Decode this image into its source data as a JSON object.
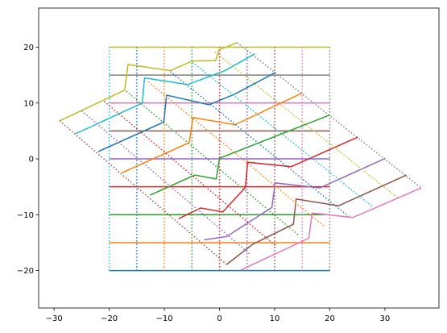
{
  "chart_data": {
    "type": "line",
    "xlim": [
      -32.8,
      39.8
    ],
    "ylim": [
      -26.7,
      27.0
    ],
    "xticks": [
      {
        "value": -30,
        "label": "−30"
      },
      {
        "value": -20,
        "label": "−20"
      },
      {
        "value": -10,
        "label": "−10"
      },
      0,
      10,
      20,
      30
    ],
    "yticks": [
      {
        "value": -20,
        "label": "−20"
      },
      {
        "value": -10,
        "label": "−10"
      },
      0,
      10,
      20
    ],
    "series": [
      {
        "color": "#1f77b4",
        "linestyle": "solid",
        "x": [
          -20,
          20
        ],
        "y": [
          -20,
          -20
        ]
      },
      {
        "color": "#ff7f0e",
        "linestyle": "solid",
        "x": [
          -20,
          20
        ],
        "y": [
          -15,
          -15
        ]
      },
      {
        "color": "#2ca02c",
        "linestyle": "solid",
        "x": [
          -20,
          20
        ],
        "y": [
          -10,
          -10
        ]
      },
      {
        "color": "#d62728",
        "linestyle": "solid",
        "x": [
          -20,
          20
        ],
        "y": [
          -5,
          -5
        ]
      },
      {
        "color": "#9467bd",
        "linestyle": "solid",
        "x": [
          -20,
          20
        ],
        "y": [
          0,
          0
        ]
      },
      {
        "color": "#8c564b",
        "linestyle": "solid",
        "x": [
          -20,
          20
        ],
        "y": [
          5,
          5
        ]
      },
      {
        "color": "#e377c2",
        "linestyle": "solid",
        "x": [
          -20,
          20
        ],
        "y": [
          10,
          10
        ]
      },
      {
        "color": "#7f7f7f",
        "linestyle": "solid",
        "x": [
          -20,
          20
        ],
        "y": [
          15,
          15
        ]
      },
      {
        "color": "#bcbd22",
        "linestyle": "solid",
        "x": [
          -20,
          20
        ],
        "y": [
          20,
          20
        ]
      },
      {
        "color": "#17becf",
        "linestyle": "dotted",
        "x": [
          -20,
          -20
        ],
        "y": [
          -20,
          20
        ]
      },
      {
        "color": "#1f77b4",
        "linestyle": "dotted",
        "x": [
          -15,
          -15
        ],
        "y": [
          -20,
          20
        ]
      },
      {
        "color": "#ff7f0e",
        "linestyle": "dotted",
        "x": [
          -10,
          -10
        ],
        "y": [
          -20,
          20
        ]
      },
      {
        "color": "#2ca02c",
        "linestyle": "dotted",
        "x": [
          -5,
          -5
        ],
        "y": [
          -20,
          20
        ]
      },
      {
        "color": "#d62728",
        "linestyle": "dotted",
        "x": [
          0,
          0
        ],
        "y": [
          -20,
          20
        ]
      },
      {
        "color": "#9467bd",
        "linestyle": "dotted",
        "x": [
          5,
          5
        ],
        "y": [
          -20,
          20
        ]
      },
      {
        "color": "#8c564b",
        "linestyle": "dotted",
        "x": [
          10,
          10
        ],
        "y": [
          -20,
          20
        ]
      },
      {
        "color": "#e377c2",
        "linestyle": "dotted",
        "x": [
          15,
          15
        ],
        "y": [
          -20,
          20
        ]
      },
      {
        "color": "#7f7f7f",
        "linestyle": "dotted",
        "x": [
          20,
          20
        ],
        "y": [
          -20,
          20
        ]
      },
      {
        "color": "#bcbd22",
        "linestyle": "solid",
        "x": [
          -29,
          -17.2,
          -16.6,
          -8.9,
          -5,
          -0.7,
          -0.1,
          3.2
        ],
        "y": [
          6.8,
          12.3,
          16.9,
          15.8,
          17.5,
          17.6,
          19.5,
          20.8
        ]
      },
      {
        "color": "#17becf",
        "linestyle": "solid",
        "x": [
          -26.1,
          -14,
          -13.6,
          -5.8,
          1,
          6.4
        ],
        "y": [
          4.5,
          10,
          14.5,
          13.3,
          15.8,
          18.8
        ]
      },
      {
        "color": "#1f77b4",
        "linestyle": "solid",
        "x": [
          -22,
          -10.1,
          -9.6,
          -1.9,
          2.8,
          10.2
        ],
        "y": [
          1.3,
          6.6,
          11.4,
          9.7,
          11.6,
          15.5
        ]
      },
      {
        "color": "#ff7f0e",
        "linestyle": "solid",
        "x": [
          -17.7,
          -5.5,
          -4.8,
          2.8,
          15
        ],
        "y": [
          -2.5,
          2.9,
          7.4,
          6.1,
          11.8
        ]
      },
      {
        "color": "#2ca02c",
        "linestyle": "solid",
        "x": [
          -12.6,
          -4.5,
          -0.6,
          0,
          20.1
        ],
        "y": [
          -6.5,
          -2.9,
          -3.6,
          0.1,
          7.9
        ]
      },
      {
        "color": "#d62728",
        "linestyle": "solid",
        "x": [
          -7.4,
          -3.4,
          0.6,
          4.7,
          5.1,
          13,
          25.1
        ],
        "y": [
          -10.7,
          -8.8,
          -9.5,
          -5.1,
          -0.6,
          -1.4,
          3.9
        ]
      },
      {
        "color": "#9467bd",
        "linestyle": "solid",
        "x": [
          -2.8,
          1.3,
          9.5,
          10.1,
          18.2,
          30.1
        ],
        "y": [
          -14.5,
          -13.9,
          -8.7,
          -4.3,
          -5.2,
          0.1
        ]
      },
      {
        "color": "#8c564b",
        "linestyle": "solid",
        "x": [
          1.3,
          6,
          13.4,
          13.9,
          21.6,
          33.9
        ],
        "y": [
          -18.9,
          -15.3,
          -11.7,
          -7.2,
          -8.4,
          -2.9
        ]
      },
      {
        "color": "#e377c2",
        "linestyle": "solid",
        "x": [
          3.9,
          16.2,
          16.8,
          24.2,
          36.6
        ],
        "y": [
          -19.9,
          -14.2,
          -9.7,
          -10.5,
          -5.2
        ]
      },
      {
        "color": "#8c564b",
        "linestyle": "dotted",
        "x": [
          -29,
          1.3
        ],
        "y": [
          6.8,
          -18.9
        ]
      },
      {
        "color": "#9467bd",
        "linestyle": "dotted",
        "x": [
          -25.0,
          5.7
        ],
        "y": [
          8.6,
          -17.2
        ]
      },
      {
        "color": "#d62728",
        "linestyle": "dotted",
        "x": [
          -20.9,
          10.1
        ],
        "y": [
          10.3,
          -15.5
        ]
      },
      {
        "color": "#2ca02c",
        "linestyle": "dotted",
        "x": [
          -16.9,
          14.5
        ],
        "y": [
          12.1,
          -13.8
        ]
      },
      {
        "color": "#ff7f0e",
        "linestyle": "dotted",
        "x": [
          -12.9,
          18.95
        ],
        "y": [
          13.8,
          -12.05
        ]
      },
      {
        "color": "#1f77b4",
        "linestyle": "dotted",
        "x": [
          -8.9,
          23.4
        ],
        "y": [
          15.6,
          -10.3
        ]
      },
      {
        "color": "#17becf",
        "linestyle": "dotted",
        "x": [
          -4.9,
          27.8
        ],
        "y": [
          17.3,
          -8.6
        ]
      },
      {
        "color": "#bcbd22",
        "linestyle": "dotted",
        "x": [
          -0.8,
          32.2
        ],
        "y": [
          19.1,
          -6.9
        ]
      },
      {
        "color": "#7f7f7f",
        "linestyle": "dotted",
        "x": [
          3.2,
          36.6
        ],
        "y": [
          20.8,
          -5.2
        ]
      }
    ]
  }
}
